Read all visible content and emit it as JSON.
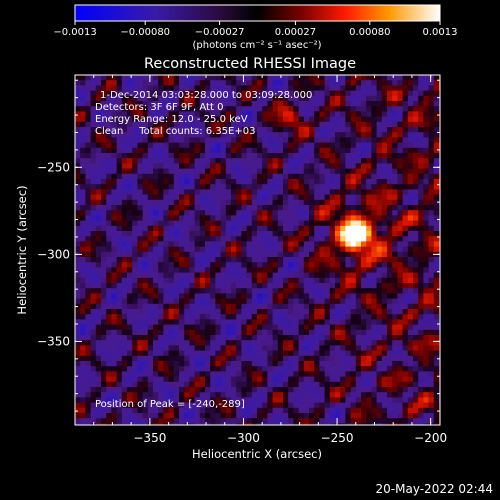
{
  "chart_data": {
    "type": "heatmap",
    "title": "Reconstructed RHESSI Image",
    "xlabel": "Heliocentric X (arcsec)",
    "ylabel": "Heliocentric Y (arcsec)",
    "xlim": [
      -390,
      -195
    ],
    "ylim": [
      -398,
      -197
    ],
    "x_ticks": [
      {
        "value": -350,
        "label": "−350"
      },
      {
        "value": -300,
        "label": "−300"
      },
      {
        "value": -250,
        "label": "−250"
      },
      {
        "value": -200,
        "label": "−200"
      }
    ],
    "y_ticks": [
      {
        "value": -250,
        "label": "−250"
      },
      {
        "value": -300,
        "label": "−300"
      },
      {
        "value": -350,
        "label": "−350"
      }
    ],
    "colorbar": {
      "min": -0.0013,
      "max": 0.0013,
      "ticks": [
        {
          "value": -0.0013,
          "label": "−0.0013"
        },
        {
          "value": -0.0008,
          "label": "−0.00080"
        },
        {
          "value": -0.00027,
          "label": "−0.00027"
        },
        {
          "value": 0.00027,
          "label": "0.00027"
        },
        {
          "value": 0.0008,
          "label": "0.00080"
        },
        {
          "value": 0.0013,
          "label": "0.0013"
        }
      ],
      "unit_label": "(photons cm⁻² s⁻¹ asec⁻²)"
    },
    "annotations": [
      "1-Dec-2014 03:03:28.000 to 03:09:28.000",
      "Detectors: 3F 6F 9F, Att 0",
      "Energy Range: 12.0 - 25.0 keV",
      "Clean     Total counts: 6.35E+03"
    ],
    "peak_text": "Position of Peak = [-240,-289]",
    "peak": {
      "x": -240,
      "y": -289,
      "value": 0.0013
    }
  },
  "footer_timestamp": "20-May-2022 02:44"
}
